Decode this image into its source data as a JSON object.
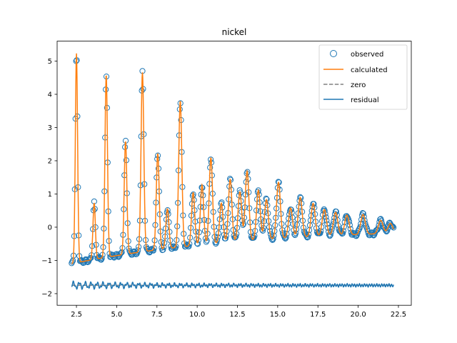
{
  "chart_data": {
    "type": "line",
    "title": "nickel",
    "xlabel": "",
    "ylabel": "",
    "xlim": [
      1.3,
      23.3
    ],
    "ylim": [
      -2.35,
      5.6
    ],
    "xticks": [
      2.5,
      5.0,
      7.5,
      10.0,
      12.5,
      15.0,
      17.5,
      20.0,
      22.5
    ],
    "xtick_labels": [
      "2.5",
      "5.0",
      "7.5",
      "10.0",
      "12.5",
      "15.0",
      "17.5",
      "20.0",
      "22.5"
    ],
    "yticks": [
      -2,
      -1,
      0,
      1,
      2,
      3,
      4,
      5
    ],
    "ytick_labels": [
      "−2",
      "−1",
      "0",
      "1",
      "2",
      "3",
      "4",
      "5"
    ],
    "legend_position": "top-right",
    "grid": false,
    "x_range": [
      2.2,
      22.2
    ],
    "background": -1.1,
    "background_decay": 0.09,
    "residual_offset": -1.75,
    "peaks": [
      {
        "x": 2.5,
        "height": 6.3
      },
      {
        "x": 3.6,
        "height": 1.7
      },
      {
        "x": 4.35,
        "height": 5.5
      },
      {
        "x": 5.55,
        "height": 3.4
      },
      {
        "x": 6.6,
        "height": 5.4
      },
      {
        "x": 7.55,
        "height": 2.9
      },
      {
        "x": 8.15,
        "height": 1.2
      },
      {
        "x": 8.95,
        "height": 4.4
      },
      {
        "x": 9.75,
        "height": 1.6
      },
      {
        "x": 10.3,
        "height": 1.8
      },
      {
        "x": 10.85,
        "height": 2.6
      },
      {
        "x": 11.5,
        "height": 1.2
      },
      {
        "x": 12.05,
        "height": 1.9
      },
      {
        "x": 12.65,
        "height": 1.5
      },
      {
        "x": 13.1,
        "height": 2.1
      },
      {
        "x": 13.8,
        "height": 1.5
      },
      {
        "x": 14.3,
        "height": 1.2
      },
      {
        "x": 15.05,
        "height": 1.7
      },
      {
        "x": 15.8,
        "height": 0.9
      },
      {
        "x": 16.4,
        "height": 1.2
      },
      {
        "x": 17.2,
        "height": 1.0
      },
      {
        "x": 17.9,
        "height": 0.8
      },
      {
        "x": 18.6,
        "height": 0.7
      },
      {
        "x": 19.3,
        "height": 0.6
      },
      {
        "x": 20.3,
        "height": 0.6
      },
      {
        "x": 21.4,
        "height": 0.4
      },
      {
        "x": 22.0,
        "height": 0.3
      }
    ],
    "series": [
      {
        "name": "observed",
        "style": "open-circle",
        "color": "#1f77b4"
      },
      {
        "name": "calculated",
        "style": "line",
        "color": "#ff7f0e"
      },
      {
        "name": "zero",
        "style": "dashed-line",
        "color": "#808080"
      },
      {
        "name": "residual",
        "style": "line",
        "color": "#1f77b4"
      }
    ]
  }
}
